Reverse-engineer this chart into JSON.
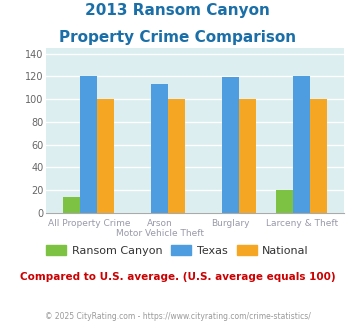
{
  "title_line1": "2013 Ransom Canyon",
  "title_line2": "Property Crime Comparison",
  "cat_labels_row1": [
    "All Property Crime",
    "Arson",
    "Burglary",
    "Larceny & Theft"
  ],
  "cat_labels_row2": [
    "",
    "Motor Vehicle Theft",
    "",
    ""
  ],
  "ransom_canyon": [
    14,
    0,
    0,
    20
  ],
  "texas": [
    120,
    113,
    119,
    120
  ],
  "national": [
    100,
    100,
    100,
    100
  ],
  "colors": {
    "ransom_canyon": "#7dc242",
    "texas": "#4d9de0",
    "national": "#f5a623"
  },
  "ylim": [
    0,
    145
  ],
  "yticks": [
    0,
    20,
    40,
    60,
    80,
    100,
    120,
    140
  ],
  "title_color": "#1a6fa8",
  "subtitle_text": "Compared to U.S. average. (U.S. average equals 100)",
  "subtitle_color": "#cc0000",
  "footer_text": "© 2025 CityRating.com - https://www.cityrating.com/crime-statistics/",
  "footer_color": "#999999",
  "bg_color": "#ddeef0",
  "legend_labels": [
    "Ransom Canyon",
    "Texas",
    "National"
  ]
}
